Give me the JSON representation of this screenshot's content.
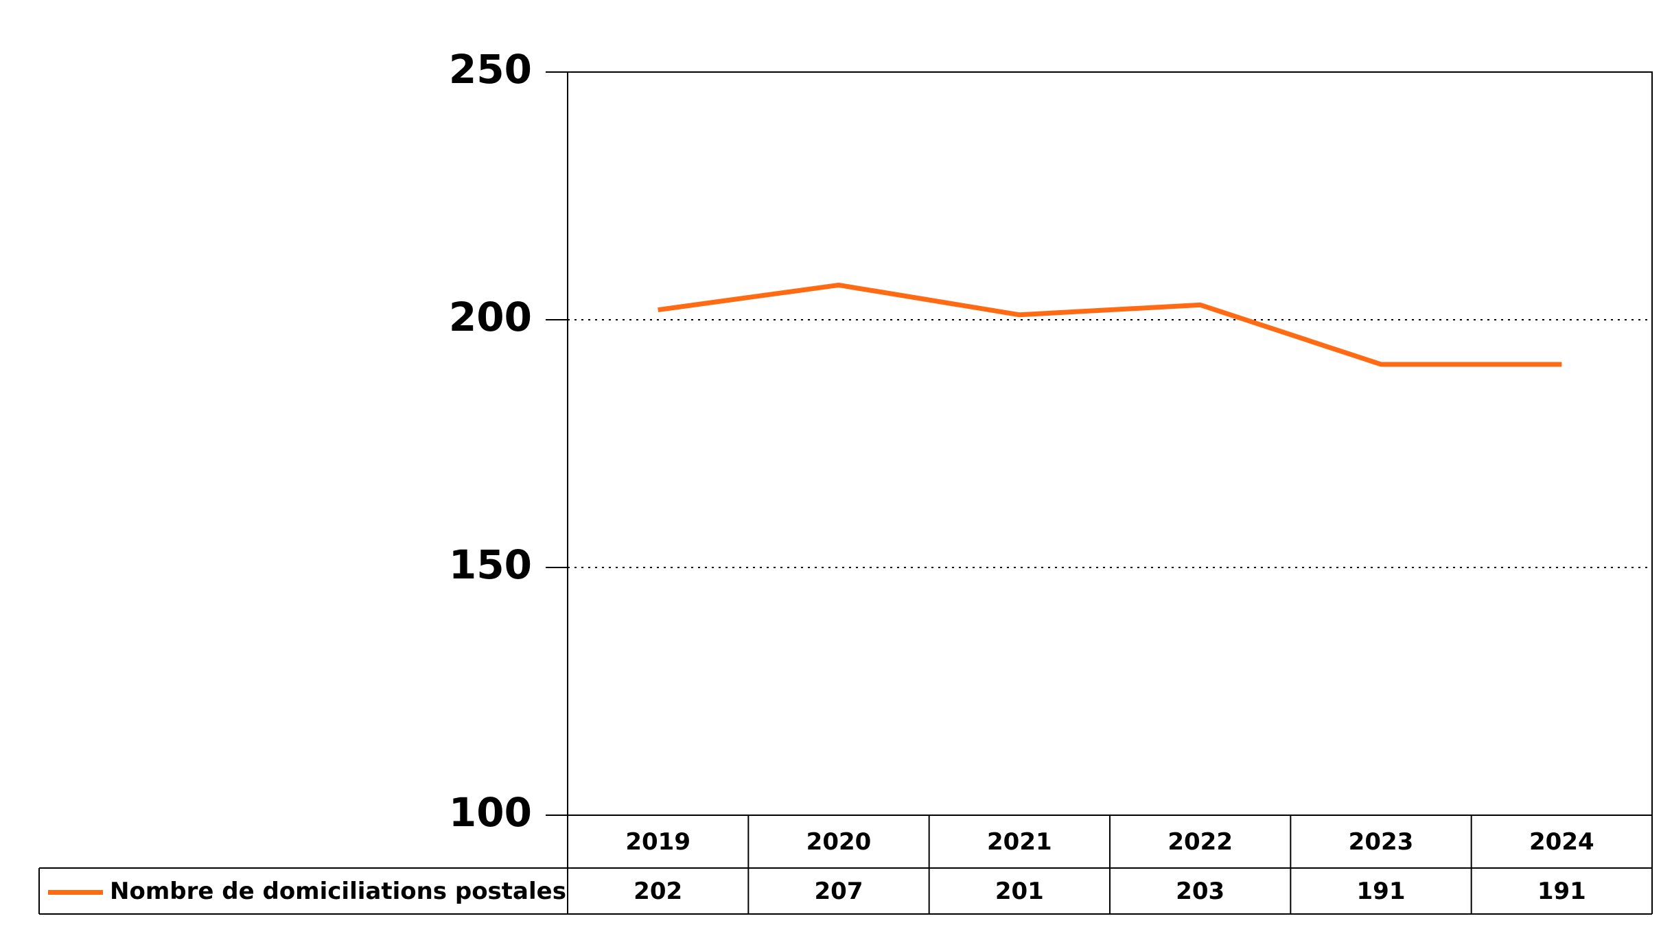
{
  "chart_data": {
    "type": "line",
    "categories": [
      "2019",
      "2020",
      "2021",
      "2022",
      "2023",
      "2024"
    ],
    "series": [
      {
        "name": "Nombre de domiciliations postales",
        "color": "#ff6a13",
        "values": [
          202,
          207,
          201,
          203,
          191,
          191
        ]
      }
    ],
    "ylim": [
      100,
      250
    ],
    "yticks": [
      100,
      150,
      200,
      250
    ],
    "grid": true
  }
}
